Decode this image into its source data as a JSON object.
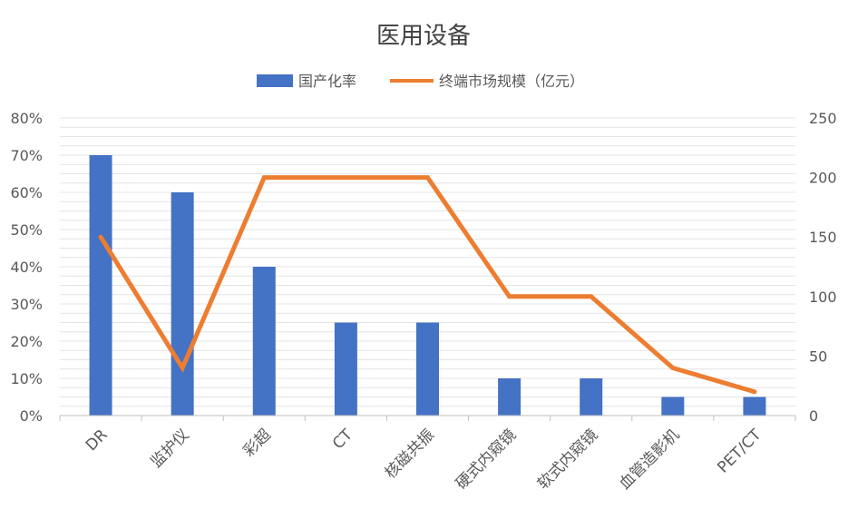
{
  "chart_data": {
    "type": "bar",
    "title": "医用设备",
    "categories": [
      "DR",
      "监护仪",
      "彩超",
      "CT",
      "核磁共振",
      "硬式内窥镜",
      "软式内窥镜",
      "血管造影机",
      "PET/CT"
    ],
    "series": [
      {
        "name": "国产化率",
        "type": "bar",
        "axis": "left",
        "color": "#4472C4",
        "values": [
          0.7,
          0.6,
          0.4,
          0.25,
          0.25,
          0.1,
          0.1,
          0.05,
          0.05
        ]
      },
      {
        "name": "终端市场规模（亿元）",
        "type": "line",
        "axis": "right",
        "color": "#ED7D31",
        "values": [
          150,
          40,
          200,
          200,
          200,
          100,
          100,
          40,
          20
        ]
      }
    ],
    "y_left": {
      "min": 0,
      "max": 0.8,
      "ticks": [
        0,
        0.1,
        0.2,
        0.3,
        0.4,
        0.5,
        0.6,
        0.7,
        0.8
      ],
      "tick_labels": [
        "0%",
        "10%",
        "20%",
        "30%",
        "40%",
        "50%",
        "60%",
        "70%",
        "80%"
      ]
    },
    "y_right": {
      "min": 0,
      "max": 250,
      "ticks": [
        0,
        50,
        100,
        150,
        200,
        250
      ],
      "tick_labels": [
        "0",
        "50",
        "100",
        "150",
        "200",
        "250"
      ]
    },
    "grid": true,
    "legend_position": "top",
    "axis_color": "#bfbfbf",
    "grid_color": "#e4e4e4",
    "text_color": "#595959"
  }
}
